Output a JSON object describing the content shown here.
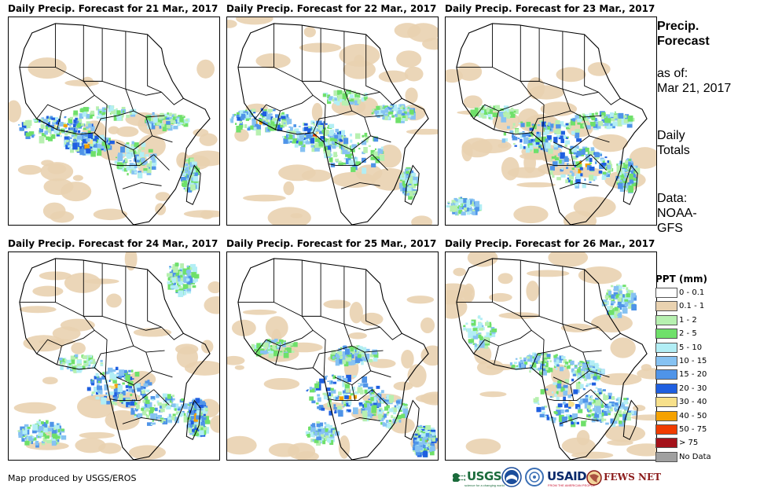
{
  "panels": [
    {
      "title": "Daily Precip. Forecast for 21 Mar., 2017",
      "variant": 0
    },
    {
      "title": "Daily Precip. Forecast for 22 Mar., 2017",
      "variant": 1
    },
    {
      "title": "Daily Precip. Forecast for 23 Mar., 2017",
      "variant": 2
    },
    {
      "title": "Daily Precip. Forecast for 24 Mar., 2017",
      "variant": 3
    },
    {
      "title": "Daily Precip. Forecast for 25 Mar., 2017",
      "variant": 4
    },
    {
      "title": "Daily Precip. Forecast for 26 Mar., 2017",
      "variant": 5
    }
  ],
  "sidebar": {
    "title_line1": "Precip.",
    "title_line2": "Forecast",
    "asof_label": "as of:",
    "asof_date": "Mar 21, 2017",
    "daily_line1": "Daily",
    "daily_line2": "Totals",
    "data_line1": "Data:",
    "data_line2": "NOAA-",
    "data_line3": "GFS"
  },
  "legend": {
    "title": "PPT (mm)",
    "items": [
      {
        "label": "0 - 0.1",
        "color": "#ffffff"
      },
      {
        "label": "0.1 - 1",
        "color": "#e9d2b0"
      },
      {
        "label": "1 - 2",
        "color": "#b7f0b0"
      },
      {
        "label": "2 - 5",
        "color": "#6fe06a"
      },
      {
        "label": "5 - 10",
        "color": "#b2eef5"
      },
      {
        "label": "10 - 15",
        "color": "#86c2f2"
      },
      {
        "label": "15 - 20",
        "color": "#4f94e8"
      },
      {
        "label": "20 - 30",
        "color": "#1f5fe0"
      },
      {
        "label": "30 - 40",
        "color": "#f7e08a"
      },
      {
        "label": "40 - 50",
        "color": "#f5a200"
      },
      {
        "label": "50 - 75",
        "color": "#f03c00"
      },
      {
        "label": "> 75",
        "color": "#a4121a"
      },
      {
        "label": "No Data",
        "color": "#a0a0a0"
      }
    ]
  },
  "credit": "Map produced by USGS/EROS",
  "logos": {
    "usgs": "USGS",
    "usgs_tagline": "science for a changing world",
    "usaid": "USAID",
    "usaid_tagline": "FROM THE AMERICAN PEOPLE",
    "fews": "FEWS NET"
  }
}
